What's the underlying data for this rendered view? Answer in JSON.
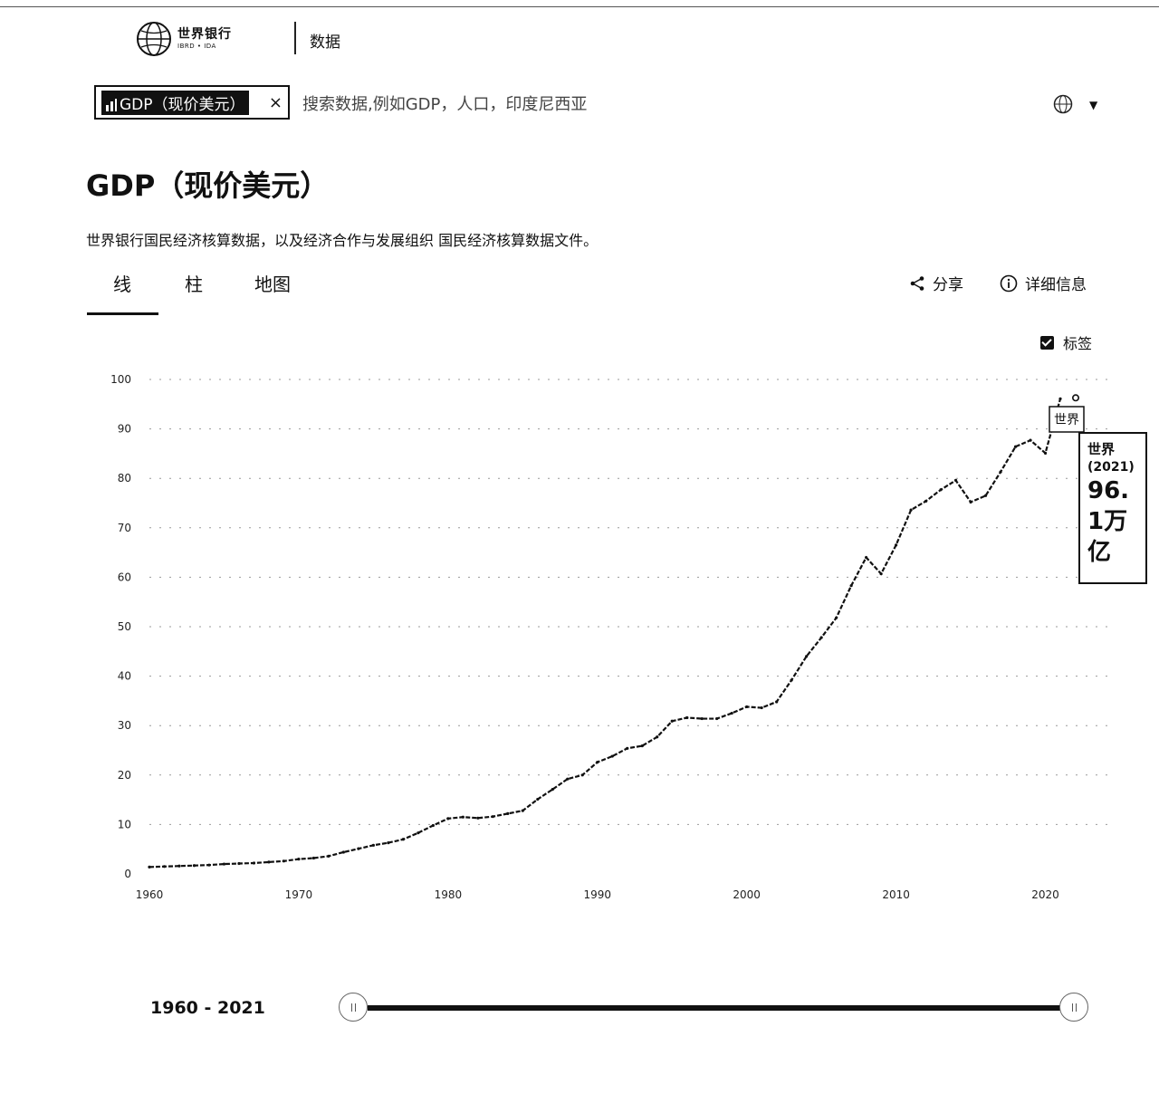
{
  "header": {
    "logo_name": "世界银行",
    "logo_sub": "IBRD • IDA",
    "section_link": "数据"
  },
  "search": {
    "chip_label": "GDP（现价美元）",
    "placeholder": "搜索数据,例如GDP，人口，印度尼西亚"
  },
  "page": {
    "title": "GDP（现价美元）",
    "source": "世界银行国民经济核算数据，以及经济合作与发展组织 国民经济核算数据文件。"
  },
  "tabs": [
    {
      "label": "线"
    },
    {
      "label": "柱"
    },
    {
      "label": "地图"
    }
  ],
  "actions": {
    "share": "分享",
    "info": "详细信息",
    "labels_toggle": "标签"
  },
  "tooltip": {
    "name": "世界",
    "year": "(2021)",
    "value": "96.1万亿"
  },
  "range": {
    "label": "1960 - 2021",
    "start": 1960,
    "end": 2021
  },
  "chart_data": {
    "type": "line",
    "series": [
      {
        "name": "世界",
        "x": [
          1960,
          1961,
          1962,
          1963,
          1964,
          1965,
          1966,
          1967,
          1968,
          1969,
          1970,
          1971,
          1972,
          1973,
          1974,
          1975,
          1976,
          1977,
          1978,
          1979,
          1980,
          1981,
          1982,
          1983,
          1984,
          1985,
          1986,
          1987,
          1988,
          1989,
          1990,
          1991,
          1992,
          1993,
          1994,
          1995,
          1996,
          1997,
          1998,
          1999,
          2000,
          2001,
          2002,
          2003,
          2004,
          2005,
          2006,
          2007,
          2008,
          2009,
          2010,
          2011,
          2012,
          2013,
          2014,
          2015,
          2016,
          2017,
          2018,
          2019,
          2020,
          2021
        ],
        "values": [
          1.4,
          1.5,
          1.6,
          1.7,
          1.8,
          2.0,
          2.1,
          2.2,
          2.4,
          2.6,
          3.0,
          3.2,
          3.6,
          4.4,
          5.1,
          5.8,
          6.3,
          7.0,
          8.3,
          9.8,
          11.2,
          11.5,
          11.3,
          11.6,
          12.2,
          12.8,
          15.1,
          17.1,
          19.2,
          20.0,
          22.6,
          23.8,
          25.4,
          25.9,
          27.7,
          30.9,
          31.6,
          31.4,
          31.4,
          32.5,
          33.8,
          33.6,
          34.8,
          39.2,
          44.0,
          47.8,
          51.8,
          58.3,
          64.0,
          60.7,
          66.5,
          73.6,
          75.4,
          77.7,
          79.6,
          75.2,
          76.5,
          81.3,
          86.4,
          87.7,
          85.1,
          96.1
        ]
      }
    ],
    "yticks": [
      0,
      10,
      20,
      30,
      40,
      50,
      60,
      70,
      80,
      90,
      100
    ],
    "xticks": [
      1960,
      1970,
      1980,
      1990,
      2000,
      2010,
      2020
    ],
    "xlim": [
      1960,
      2021
    ],
    "ylim": [
      0,
      100
    ],
    "grid": true,
    "series_label": "世界",
    "highlight": {
      "x": 2021,
      "y": 96.1,
      "label": "96.1万亿"
    }
  }
}
